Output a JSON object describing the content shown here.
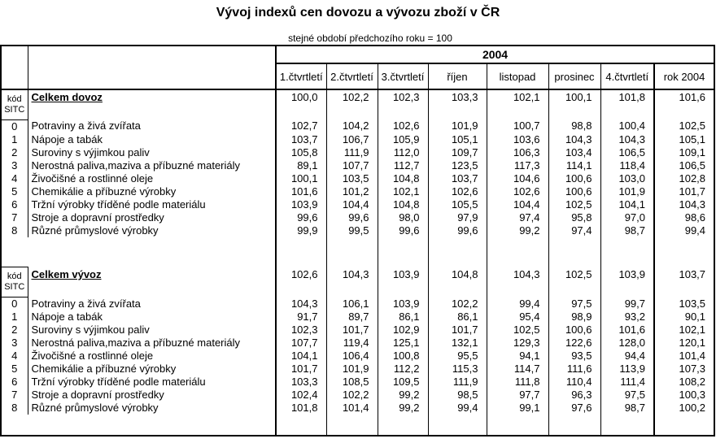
{
  "title": "Vývoj indexů cen dovozu a vývozu zboží v ČR",
  "subtitle": "stejné období předchozího roku = 100",
  "colors": {
    "border": "#000000",
    "background": "#ffffff",
    "text": "#000000"
  },
  "table": {
    "year_header": "2004",
    "code_header_line1": "kód",
    "code_header_line2": "SITC",
    "columns": [
      "1.čtvrtletí",
      "2.čtvrtletí",
      "3.čtvrtletí",
      "říjen",
      "listopad",
      "prosinec",
      "4.čtvrtletí",
      "rok 2004"
    ],
    "sections": [
      {
        "total_label": "Celkem dovoz",
        "total_values": [
          "100,0",
          "102,2",
          "102,3",
          "103,3",
          "102,1",
          "100,1",
          "101,8",
          "101,6"
        ],
        "rows": [
          {
            "code": "0",
            "label": "Potraviny a živá zvířata",
            "values": [
              "102,7",
              "104,2",
              "102,6",
              "101,9",
              "100,7",
              "98,8",
              "100,4",
              "102,5"
            ]
          },
          {
            "code": "1",
            "label": "Nápoje a tabák",
            "values": [
              "103,7",
              "106,7",
              "105,9",
              "105,1",
              "103,6",
              "104,3",
              "104,3",
              "105,1"
            ]
          },
          {
            "code": "2",
            "label": "Suroviny s výjimkou paliv",
            "values": [
              "105,8",
              "111,9",
              "112,0",
              "109,7",
              "106,3",
              "103,4",
              "106,5",
              "109,1"
            ]
          },
          {
            "code": "3",
            "label": "Nerostná paliva,maziva a příbuzné materiály",
            "values": [
              "89,1",
              "107,7",
              "112,7",
              "123,5",
              "117,3",
              "114,1",
              "118,4",
              "106,5"
            ]
          },
          {
            "code": "4",
            "label": "Živočišné a rostlinné oleje",
            "values": [
              "100,1",
              "103,5",
              "104,8",
              "103,7",
              "104,6",
              "100,6",
              "103,0",
              "102,8"
            ]
          },
          {
            "code": "5",
            "label": "Chemikálie a příbuzné výrobky",
            "values": [
              "101,6",
              "101,2",
              "102,1",
              "102,6",
              "102,6",
              "100,6",
              "101,9",
              "101,7"
            ]
          },
          {
            "code": "6",
            "label": "Tržní výrobky tříděné podle materiálu",
            "values": [
              "103,9",
              "104,4",
              "104,8",
              "105,5",
              "104,4",
              "102,5",
              "104,1",
              "104,3"
            ]
          },
          {
            "code": "7",
            "label": "Stroje a dopravní prostředky",
            "values": [
              "99,6",
              "99,6",
              "98,0",
              "97,9",
              "97,4",
              "95,8",
              "97,0",
              "98,6"
            ]
          },
          {
            "code": "8",
            "label": "Různé průmyslové výrobky",
            "values": [
              "99,9",
              "99,5",
              "99,6",
              "99,6",
              "99,2",
              "97,4",
              "98,7",
              "99,4"
            ]
          }
        ]
      },
      {
        "total_label": "Celkem vývoz",
        "total_values": [
          "102,6",
          "104,3",
          "103,9",
          "104,8",
          "104,3",
          "102,5",
          "103,9",
          "103,7"
        ],
        "rows": [
          {
            "code": "0",
            "label": "Potraviny a živá zvířata",
            "values": [
              "104,3",
              "106,1",
              "103,9",
              "102,2",
              "99,4",
              "97,5",
              "99,7",
              "103,5"
            ]
          },
          {
            "code": "1",
            "label": "Nápoje a tabák",
            "values": [
              "91,7",
              "89,7",
              "86,1",
              "86,1",
              "95,4",
              "98,9",
              "93,2",
              "90,1"
            ]
          },
          {
            "code": "2",
            "label": "Suroviny s výjimkou paliv",
            "values": [
              "102,3",
              "101,7",
              "102,9",
              "101,7",
              "102,5",
              "100,6",
              "101,6",
              "102,1"
            ]
          },
          {
            "code": "3",
            "label": "Nerostná paliva,maziva a příbuzné materiály",
            "values": [
              "107,7",
              "119,4",
              "125,1",
              "132,1",
              "129,3",
              "122,6",
              "128,0",
              "120,1"
            ]
          },
          {
            "code": "4",
            "label": "Živočišné a rostlinné oleje",
            "values": [
              "104,1",
              "106,4",
              "100,8",
              "95,5",
              "94,1",
              "93,5",
              "94,4",
              "101,4"
            ]
          },
          {
            "code": "5",
            "label": "Chemikálie a příbuzné výrobky",
            "values": [
              "101,7",
              "101,9",
              "112,2",
              "115,3",
              "114,7",
              "111,6",
              "113,9",
              "107,3"
            ]
          },
          {
            "code": "6",
            "label": "Tržní výrobky tříděné podle materiálu",
            "values": [
              "103,3",
              "108,5",
              "109,5",
              "111,9",
              "111,8",
              "110,4",
              "111,4",
              "108,2"
            ]
          },
          {
            "code": "7",
            "label": "Stroje a dopravní prostředky",
            "values": [
              "102,4",
              "102,2",
              "99,2",
              "98,5",
              "97,7",
              "96,3",
              "97,5",
              "100,3"
            ]
          },
          {
            "code": "8",
            "label": "Různé průmyslové výrobky",
            "values": [
              "101,8",
              "101,4",
              "99,2",
              "99,4",
              "99,1",
              "97,6",
              "98,7",
              "100,2"
            ]
          }
        ]
      }
    ]
  }
}
